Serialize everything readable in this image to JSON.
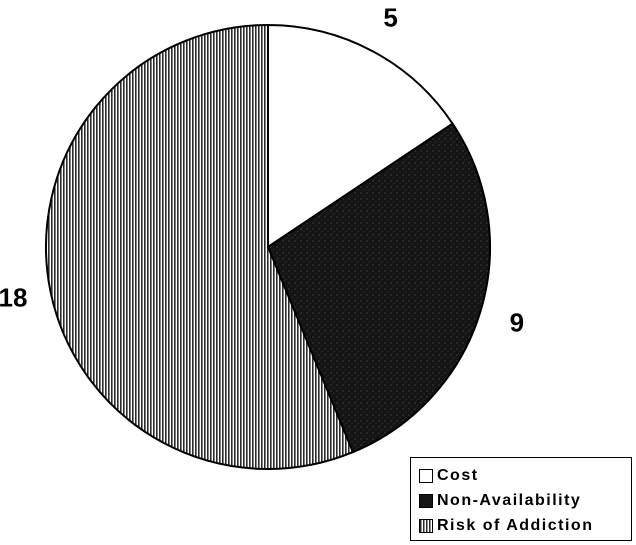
{
  "chart_data": {
    "type": "pie",
    "categories": [
      "Cost",
      "Non-Availability",
      "Risk of Addiction"
    ],
    "values": [
      5,
      9,
      18
    ],
    "data_labels": [
      "5",
      "9",
      "18"
    ],
    "legend": {
      "placement": "bottom-right",
      "entries": [
        "Cost",
        "Non-Availability",
        "Risk of Addiction"
      ]
    },
    "colors": {
      "Cost": "#ffffff",
      "Non-Availability": "#151515",
      "Risk of Addiction": "#9a9a9a"
    },
    "start_angle": "12 o'clock, clockwise"
  }
}
